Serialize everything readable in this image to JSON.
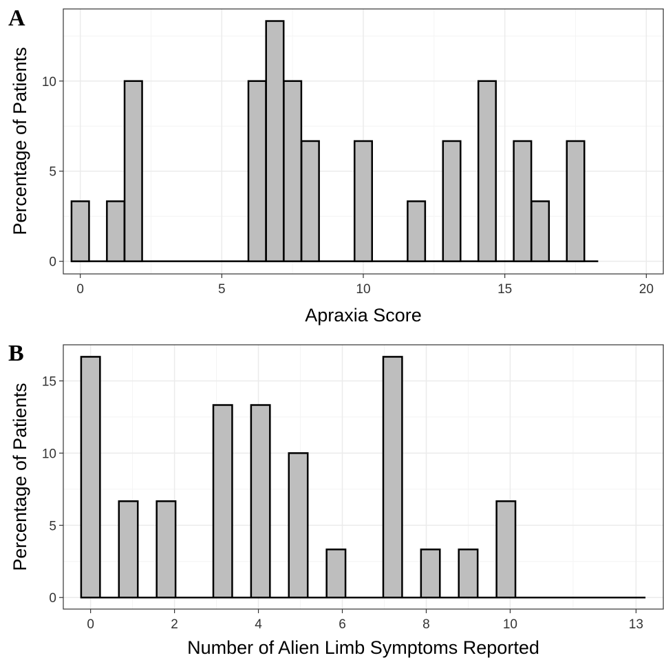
{
  "chart_data": [
    {
      "type": "bar",
      "panel_label": "A",
      "xlabel": "Apraxia Score",
      "ylabel": "Percentage of Patients",
      "xlim": [
        -0.6,
        20.6
      ],
      "ylim": [
        -0.7,
        14.0
      ],
      "x_ticks": [
        0,
        5,
        10,
        15,
        20
      ],
      "y_ticks": [
        0,
        5,
        10
      ],
      "grid": true,
      "bar_color": "#bebebe",
      "edge_color": "#000000",
      "baseline_range": [
        -0.3,
        18.3
      ],
      "bar_width": 0.62,
      "x": [
        0,
        1.25,
        1.875,
        6.25,
        6.875,
        7.5,
        8.125,
        10,
        11.875,
        13.125,
        14.375,
        15.625,
        16.25,
        17.5
      ],
      "values": [
        3.33,
        3.33,
        10.0,
        10.0,
        13.33,
        10.0,
        6.67,
        6.67,
        3.33,
        6.67,
        10.0,
        6.67,
        3.33,
        6.67
      ]
    },
    {
      "type": "bar",
      "panel_label": "B",
      "xlabel": "Number of Alien Limb Symptoms Reported",
      "ylabel": "Percentage of Patients",
      "xlim": [
        -0.65,
        13.65
      ],
      "ylim": [
        -0.8,
        17.5
      ],
      "x_ticks": [
        0,
        2,
        4,
        6,
        8,
        10,
        13
      ],
      "y_ticks": [
        0,
        5,
        10,
        15
      ],
      "grid": true,
      "bar_color": "#bebebe",
      "edge_color": "#000000",
      "baseline_range": [
        -0.225,
        13.225
      ],
      "bar_width": 0.45,
      "x": [
        0,
        0.9,
        1.8,
        3.15,
        4.05,
        4.95,
        5.85,
        7.2,
        8.1,
        9.0,
        9.9
      ],
      "values": [
        16.67,
        6.67,
        6.67,
        13.33,
        13.33,
        10.0,
        3.33,
        16.67,
        3.33,
        3.33,
        6.67
      ]
    }
  ]
}
